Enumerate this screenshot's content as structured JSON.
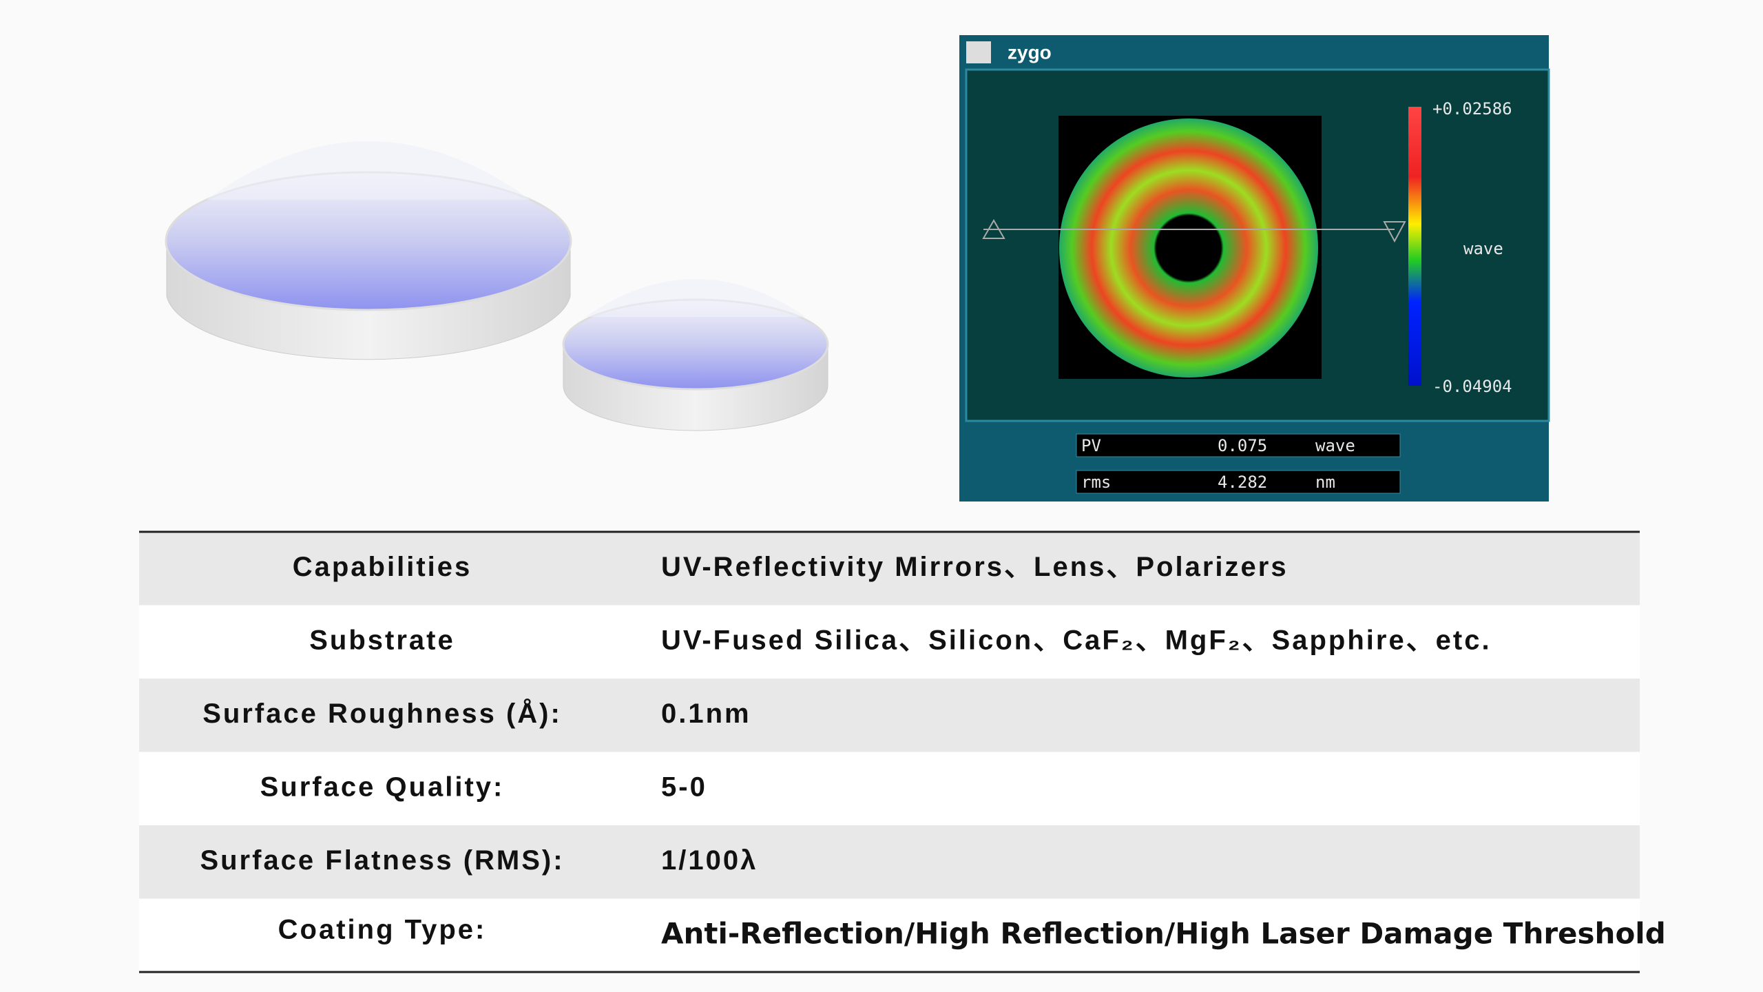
{
  "measurement": {
    "brand": "zygo",
    "scale_max": "+0.02586",
    "scale_unit": "wave",
    "scale_min": "-0.04904",
    "readouts": [
      {
        "label": "PV",
        "value": "0.075",
        "unit": "wave"
      },
      {
        "label": "rms",
        "value": "4.282",
        "unit": "nm"
      }
    ]
  },
  "table": {
    "rows": [
      [
        "Capabilities",
        "UV-Reflectivity Mirrors、Lens、Polarizers"
      ],
      [
        "Substrate",
        "UV-Fused Silica、Silicon、CaF₂、MgF₂、Sapphire、etc."
      ],
      [
        "Surface Roughness (Å):",
        "0.1nm"
      ],
      [
        "Surface Quality:",
        "5-0"
      ],
      [
        "Surface Flatness (RMS):",
        "1/100λ"
      ],
      [
        "Coating Type:",
        "Anti-Reflection/High Reflection/High Laser Damage Threshold"
      ]
    ]
  }
}
